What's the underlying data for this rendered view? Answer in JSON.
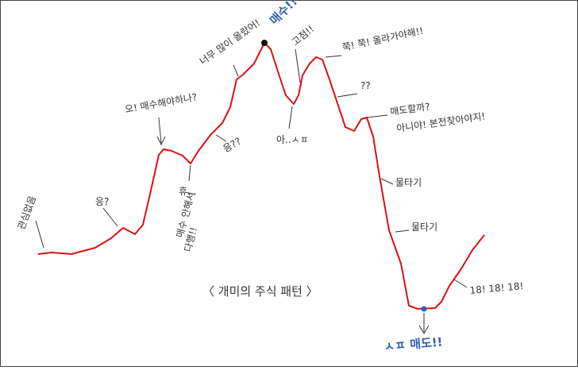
{
  "title": "〈 개미의 주식 패턴 〉",
  "annotations": [
    "관심없음",
    "응?",
    "오! 매수해야하나?",
    "휴...",
    "매수 안해서",
    "다행!!",
    "응??",
    "너무 많이 올랐어!",
    "매수!!",
    "고점!!",
    "쭉! 쭉! 올라가야해!!",
    "아..ㅅㅍ",
    "??",
    "매도할까?",
    "아니야! 본전찾아야지!",
    "물타기",
    "물타기",
    "18! 18! 18!",
    "ㅅㅍ 매도!!"
  ]
}
